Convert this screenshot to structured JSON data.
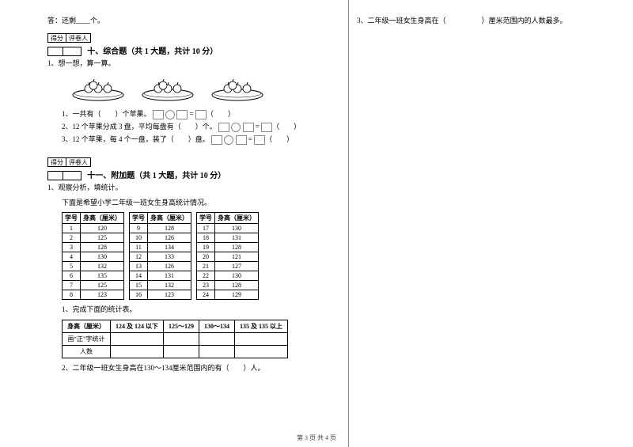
{
  "left": {
    "answer_line": "答：还剩____个。",
    "score_label": "得分",
    "grader_label": "评卷人",
    "section10": {
      "title": "十、综合题（共 1 大题，共计 10 分）",
      "q1": "1、想一想，算一算。",
      "sub1": "1、一共有（　　）个苹果。",
      "sub2": "2、12 个苹果分成 3 盘，平均每盘有（　　）个。",
      "sub3": "3、12 个苹果，每 4 个一盘，装了（　　）盘。"
    },
    "section11": {
      "title": "十一、附加题（共 1 大题，共计 10 分）",
      "q1": "1、观察分析，填统计。",
      "intro": "下面是希望小学二年级一班女生身高统计情况。",
      "header_id": "学号",
      "header_h": "身高（厘米）",
      "t1": [
        [
          "1",
          "120"
        ],
        [
          "2",
          "125"
        ],
        [
          "3",
          "128"
        ],
        [
          "4",
          "130"
        ],
        [
          "5",
          "132"
        ],
        [
          "6",
          "135"
        ],
        [
          "7",
          "125"
        ],
        [
          "8",
          "123"
        ]
      ],
      "t2": [
        [
          "9",
          "128"
        ],
        [
          "10",
          "126"
        ],
        [
          "11",
          "134"
        ],
        [
          "12",
          "133"
        ],
        [
          "13",
          "126"
        ],
        [
          "14",
          "131"
        ],
        [
          "15",
          "132"
        ],
        [
          "16",
          "123"
        ]
      ],
      "t3": [
        [
          "17",
          "130"
        ],
        [
          "18",
          "131"
        ],
        [
          "19",
          "128"
        ],
        [
          "20",
          "121"
        ],
        [
          "21",
          "127"
        ],
        [
          "22",
          "130"
        ],
        [
          "23",
          "128"
        ],
        [
          "24",
          "129"
        ]
      ],
      "sub1": "1、完成下面的统计表。",
      "stat_headers": [
        "身高（厘米）",
        "124 及 124 以下",
        "125～129",
        "130～134",
        "135 及 135 以上"
      ],
      "stat_row1": "画“正”字统计",
      "stat_row2": "人数",
      "sub2": "2、二年级一班女生身高在130～134厘米范围内的有（　　）人。"
    }
  },
  "right": {
    "q3": "3、二年级一班女生身高在（　　　　　）厘米范围内的人数最多。"
  },
  "footer": "第 3 页 共 4 页"
}
